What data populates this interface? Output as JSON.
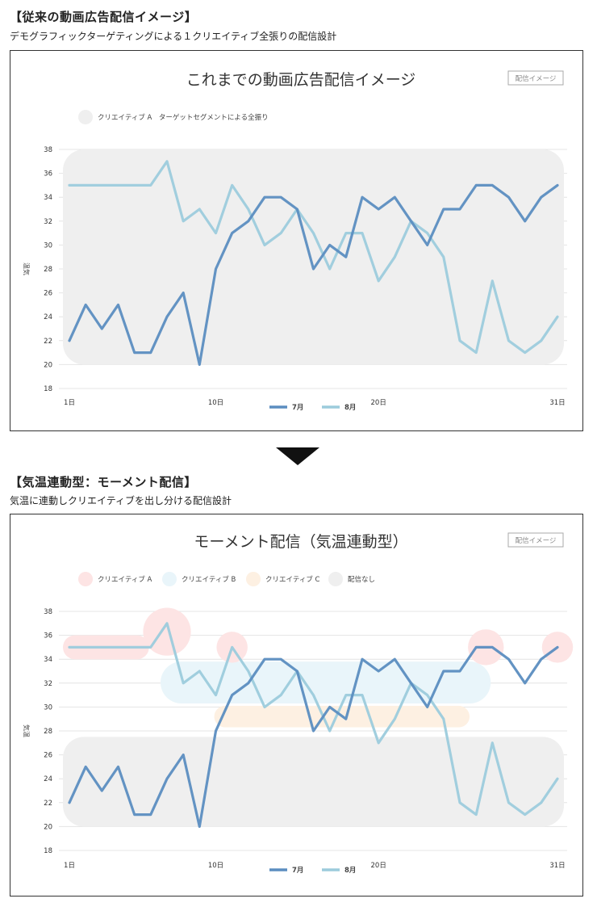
{
  "section1": {
    "title": "【従来の動画広告配信イメージ】",
    "subtitle": "デモグラフィックターゲティングによる１クリエイティブ全張りの配信設計"
  },
  "section2": {
    "title": "【気温連動型：モーメント配信】",
    "subtitle": "気温に連動しクリエイティブを出し分ける配信設計"
  },
  "colors": {
    "july": "#5b8dc0",
    "august": "#9ccbdc",
    "creative_a": "#fde4e4",
    "creative_b": "#e9f5fa",
    "creative_c": "#fdf0e2",
    "none": "#efefef"
  },
  "chart_data": [
    {
      "type": "line",
      "title": "これまでの動画広告配信イメージ",
      "badge": "配信イメージ",
      "ylabel": "温気",
      "ylim": [
        18,
        38
      ],
      "yticks": [
        18,
        20,
        22,
        24,
        26,
        28,
        30,
        32,
        34,
        36,
        38
      ],
      "x": [
        1,
        2,
        3,
        4,
        5,
        6,
        7,
        8,
        9,
        10,
        11,
        12,
        13,
        14,
        15,
        16,
        17,
        18,
        19,
        20,
        21,
        22,
        23,
        24,
        25,
        26,
        27,
        28,
        29,
        30,
        31
      ],
      "xticks": [
        {
          "x": 1,
          "label": "1日"
        },
        {
          "x": 10,
          "label": "10日"
        },
        {
          "x": 20,
          "label": "20日"
        },
        {
          "x": 31,
          "label": "31日"
        }
      ],
      "grid": true,
      "legend": [
        {
          "label": "クリエイティブ A　ターゲットセグメントによる全振り",
          "color": "#efefef"
        }
      ],
      "bands": [
        {
          "x0": 1,
          "x1": 31,
          "y0": 20,
          "y1": 38,
          "color": "#efefef"
        }
      ],
      "series": [
        {
          "name": "7月",
          "values": [
            22,
            25,
            23,
            25,
            21,
            21,
            24,
            26,
            20,
            28,
            31,
            32,
            34,
            34,
            33,
            28,
            30,
            29,
            34,
            33,
            34,
            32,
            30,
            33,
            33,
            35,
            35,
            34,
            32,
            34,
            35
          ]
        },
        {
          "name": "8月",
          "values": [
            35,
            35,
            35,
            35,
            35,
            35,
            37,
            32,
            33,
            31,
            35,
            33,
            30,
            31,
            33,
            31,
            28,
            31,
            31,
            27,
            29,
            32,
            31,
            29,
            22,
            21,
            27,
            22,
            21,
            22,
            24
          ]
        }
      ]
    },
    {
      "type": "line",
      "title": "モーメント配信（気温連動型）",
      "badge": "配信イメージ",
      "ylabel": "気温",
      "ylim": [
        18,
        38
      ],
      "yticks": [
        18,
        20,
        22,
        24,
        26,
        28,
        30,
        32,
        34,
        36,
        38
      ],
      "x": [
        1,
        2,
        3,
        4,
        5,
        6,
        7,
        8,
        9,
        10,
        11,
        12,
        13,
        14,
        15,
        16,
        17,
        18,
        19,
        20,
        21,
        22,
        23,
        24,
        25,
        26,
        27,
        28,
        29,
        30,
        31
      ],
      "xticks": [
        {
          "x": 1,
          "label": "1日"
        },
        {
          "x": 10,
          "label": "10日"
        },
        {
          "x": 20,
          "label": "20日"
        },
        {
          "x": 31,
          "label": "31日"
        }
      ],
      "grid": true,
      "legend": [
        {
          "label": "クリエイティブ A",
          "color": "#fde4e4"
        },
        {
          "label": "クリエイティブ B",
          "color": "#e9f5fa"
        },
        {
          "label": "クリエイティブ C",
          "color": "#fdf0e2"
        },
        {
          "label": "配信なし",
          "color": "#efefef"
        }
      ],
      "bands": [
        {
          "x0": 1,
          "x1": 31,
          "y0": 20,
          "y1": 27.5,
          "color": "#efefef"
        },
        {
          "x0": 10.3,
          "x1": 25.2,
          "y0": 28.3,
          "y1": 30.1,
          "color": "#fdf0e2"
        },
        {
          "x0": 7,
          "x1": 26.5,
          "y0": 30.3,
          "y1": 33.8,
          "color": "#e9f5fa"
        },
        {
          "x0": 1,
          "x1": 5.5,
          "y0": 34,
          "y1": 36,
          "color": "#fde4e4"
        }
      ],
      "spots": [
        {
          "x": 7,
          "y": 36.3,
          "r": 2,
          "color": "#fde4e4"
        },
        {
          "x": 11,
          "y": 35,
          "r": 1.3,
          "color": "#fde4e4"
        },
        {
          "x": 26.6,
          "y": 35,
          "r": 1.5,
          "color": "#fde4e4"
        },
        {
          "x": 31,
          "y": 35,
          "r": 1.3,
          "color": "#fde4e4"
        }
      ],
      "series": [
        {
          "name": "7月",
          "values": [
            22,
            25,
            23,
            25,
            21,
            21,
            24,
            26,
            20,
            28,
            31,
            32,
            34,
            34,
            33,
            28,
            30,
            29,
            34,
            33,
            34,
            32,
            30,
            33,
            33,
            35,
            35,
            34,
            32,
            34,
            35
          ]
        },
        {
          "name": "8月",
          "values": [
            35,
            35,
            35,
            35,
            35,
            35,
            37,
            32,
            33,
            31,
            35,
            33,
            30,
            31,
            33,
            31,
            28,
            31,
            31,
            27,
            29,
            32,
            31,
            29,
            22,
            21,
            27,
            22,
            21,
            22,
            24
          ]
        }
      ]
    }
  ]
}
